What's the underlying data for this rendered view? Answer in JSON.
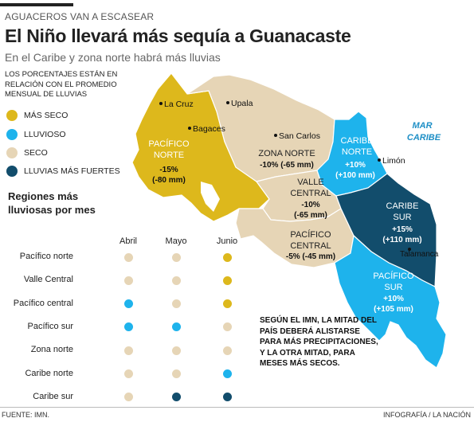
{
  "header": {
    "kicker": "AGUACEROS VAN A ESCASEAR",
    "title": "El Niño llevará más sequía a Guanacaste",
    "subtitle": "En el Caribe y zona norte habrá más lluvias",
    "note": "LOS PORCENTAJES ESTÁN EN RELACIÓN CON EL PROMEDIO MENSUAL DE LLUVIAS"
  },
  "colors": {
    "mas_seco": "#DDB81C",
    "lluvioso": "#1EB3EC",
    "seco": "#E6D5B6",
    "lluvias_fuertes": "#124D6C"
  },
  "legend": [
    {
      "label": "MÁS SECO",
      "color": "#DDB81C"
    },
    {
      "label": "LLUVIOSO",
      "color": "#1EB3EC"
    },
    {
      "label": "SECO",
      "color": "#E6D5B6"
    },
    {
      "label": "LLUVIAS MÁS FUERTES",
      "color": "#124D6C"
    }
  ],
  "map": {
    "sea_label_1": "MAR",
    "sea_label_2": "CARIBE",
    "cities": {
      "la_cruz": "La Cruz",
      "upala": "Upala",
      "bagaces": "Bagaces",
      "san_carlos": "San Carlos",
      "limon": "Limón",
      "talamanca": "Talamanca"
    },
    "regions": {
      "pacifico_norte": {
        "name1": "PACÍFICO",
        "name2": "NORTE",
        "pct": "-15%",
        "mm": "(-80 mm)"
      },
      "zona_norte": {
        "name1": "ZONA NORTE",
        "value": "-10% (-65 mm)"
      },
      "valle_central": {
        "name1": "VALLE",
        "name2": "CENTRAL",
        "pct": "-10%",
        "mm": "(-65 mm)"
      },
      "pacifico_central": {
        "name1": "PACÍFICO",
        "name2": "CENTRAL",
        "value": "-5% (-45 mm)"
      },
      "caribe_norte": {
        "name1": "CARIBE",
        "name2": "NORTE",
        "pct": "+10%",
        "mm": "(+100 mm)"
      },
      "caribe_sur": {
        "name1": "CARIBE",
        "name2": "SUR",
        "pct": "+15%",
        "mm": "(+110 mm)"
      },
      "pacifico_sur": {
        "name1": "PACÍFICO",
        "name2": "SUR",
        "pct": "+10%",
        "mm": "(+105 mm)"
      }
    }
  },
  "months_grid": {
    "heading": "Regiones más lluviosas por mes",
    "months": [
      "Abril",
      "Mayo",
      "Junio"
    ],
    "rows": [
      {
        "region": "Pacífico norte",
        "values": [
          "seco",
          "seco",
          "mas_seco"
        ]
      },
      {
        "region": "Valle Central",
        "values": [
          "seco",
          "seco",
          "mas_seco"
        ]
      },
      {
        "region": "Pacífico central",
        "values": [
          "lluvioso",
          "seco",
          "mas_seco"
        ]
      },
      {
        "region": "Pacífico sur",
        "values": [
          "lluvioso",
          "lluvioso",
          "seco"
        ]
      },
      {
        "region": "Zona norte",
        "values": [
          "seco",
          "seco",
          "seco"
        ]
      },
      {
        "region": "Caribe norte",
        "values": [
          "seco",
          "seco",
          "lluvioso"
        ]
      },
      {
        "region": "Caribe sur",
        "values": [
          "seco",
          "lluvias_fuertes",
          "lluvias_fuertes"
        ]
      }
    ]
  },
  "quote": "SEGÚN EL IMN, LA MITAD DEL PAÍS DEBERÁ ALISTARSE PARA MÁS PRECIPITACIONES, Y LA OTRA MITAD, PARA MESES MÁS SECOS.",
  "footer": {
    "source": "FUENTE: IMN.",
    "credit": "INFOGRAFÍA / LA NACIÓN"
  }
}
